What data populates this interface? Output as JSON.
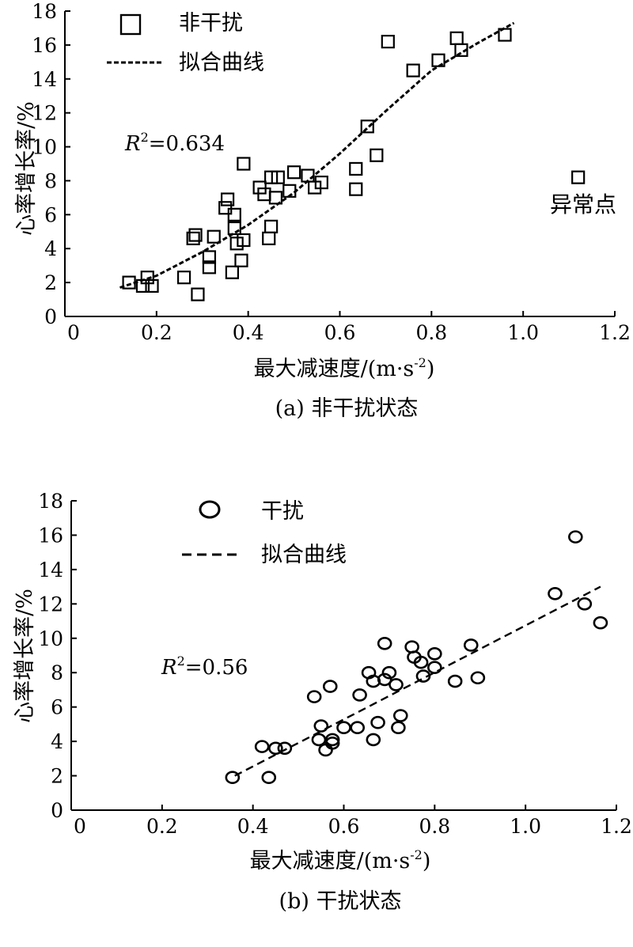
{
  "chart_data": [
    {
      "type": "scatter",
      "caption": "(a) 非干扰状态",
      "xlabel": "最大减速度/(m·s",
      "xlabel_sup": "-2",
      "xlabel_close": ")",
      "ylabel": "心率增长率/%",
      "xlim": [
        0,
        1.2
      ],
      "ylim": [
        0,
        18
      ],
      "x_ticks": [
        "0",
        "0.2",
        "0.4",
        "0.6",
        "0.8",
        "1.0",
        "1.2"
      ],
      "y_ticks": [
        "0",
        "2",
        "4",
        "6",
        "8",
        "10",
        "12",
        "14",
        "16",
        "18"
      ],
      "legend": [
        "非干扰",
        "拟合曲线"
      ],
      "legend_position": "top-left",
      "r2_label": "R",
      "r2_sup": "2",
      "r2_value": "=0.634",
      "annotation": "异常点",
      "marker": "square",
      "grid": false,
      "points": [
        [
          0.14,
          2.0
        ],
        [
          0.17,
          1.8
        ],
        [
          0.18,
          2.3
        ],
        [
          0.19,
          1.8
        ],
        [
          0.26,
          2.3
        ],
        [
          0.28,
          4.6
        ],
        [
          0.285,
          4.8
        ],
        [
          0.29,
          1.3
        ],
        [
          0.315,
          3.5
        ],
        [
          0.315,
          2.9
        ],
        [
          0.325,
          4.7
        ],
        [
          0.35,
          6.4
        ],
        [
          0.355,
          6.9
        ],
        [
          0.365,
          2.6
        ],
        [
          0.37,
          6.0
        ],
        [
          0.37,
          5.2
        ],
        [
          0.375,
          4.3
        ],
        [
          0.385,
          3.3
        ],
        [
          0.39,
          4.5
        ],
        [
          0.39,
          9.0
        ],
        [
          0.425,
          7.6
        ],
        [
          0.435,
          7.2
        ],
        [
          0.445,
          4.6
        ],
        [
          0.45,
          5.3
        ],
        [
          0.45,
          8.2
        ],
        [
          0.46,
          7.0
        ],
        [
          0.465,
          8.2
        ],
        [
          0.49,
          7.4
        ],
        [
          0.5,
          8.5
        ],
        [
          0.53,
          8.3
        ],
        [
          0.545,
          7.6
        ],
        [
          0.56,
          7.9
        ],
        [
          0.635,
          8.7
        ],
        [
          0.635,
          7.5
        ],
        [
          0.66,
          11.2
        ],
        [
          0.68,
          9.5
        ],
        [
          0.705,
          16.2
        ],
        [
          0.76,
          14.5
        ],
        [
          0.815,
          15.1
        ],
        [
          0.855,
          16.4
        ],
        [
          0.865,
          15.7
        ],
        [
          0.96,
          16.6
        ],
        [
          1.12,
          8.2
        ]
      ],
      "fit": [
        [
          0.12,
          1.7
        ],
        [
          0.2,
          2.4
        ],
        [
          0.3,
          3.8
        ],
        [
          0.4,
          5.4
        ],
        [
          0.5,
          7.3
        ],
        [
          0.6,
          9.6
        ],
        [
          0.7,
          12.1
        ],
        [
          0.8,
          14.5
        ],
        [
          0.9,
          16.1
        ],
        [
          0.98,
          17.3
        ]
      ]
    },
    {
      "type": "scatter",
      "caption": "(b) 干扰状态",
      "xlabel": "最大减速度/(m·s",
      "xlabel_sup": "-2",
      "xlabel_close": ")",
      "ylabel": "心率增长率/%",
      "xlim": [
        0,
        1.2
      ],
      "ylim": [
        0,
        18
      ],
      "x_ticks": [
        "0",
        "0.2",
        "0.4",
        "0.6",
        "0.8",
        "1.0",
        "1.2"
      ],
      "y_ticks": [
        "0",
        "2",
        "4",
        "6",
        "8",
        "10",
        "12",
        "14",
        "16",
        "18"
      ],
      "legend": [
        "干扰",
        "拟合曲线"
      ],
      "legend_position": "top-left",
      "r2_label": "R",
      "r2_sup": "2",
      "r2_value": "=0.56",
      "marker": "circle",
      "grid": false,
      "points": [
        [
          0.355,
          1.9
        ],
        [
          0.42,
          3.7
        ],
        [
          0.435,
          1.9
        ],
        [
          0.45,
          3.6
        ],
        [
          0.47,
          3.6
        ],
        [
          0.535,
          6.6
        ],
        [
          0.545,
          4.1
        ],
        [
          0.55,
          4.9
        ],
        [
          0.56,
          3.5
        ],
        [
          0.57,
          7.2
        ],
        [
          0.575,
          4.1
        ],
        [
          0.575,
          3.9
        ],
        [
          0.6,
          4.8
        ],
        [
          0.63,
          4.8
        ],
        [
          0.635,
          6.7
        ],
        [
          0.655,
          8.0
        ],
        [
          0.665,
          4.1
        ],
        [
          0.665,
          7.5
        ],
        [
          0.675,
          5.1
        ],
        [
          0.69,
          9.7
        ],
        [
          0.69,
          7.6
        ],
        [
          0.7,
          8.0
        ],
        [
          0.715,
          7.3
        ],
        [
          0.72,
          4.8
        ],
        [
          0.725,
          5.5
        ],
        [
          0.75,
          9.5
        ],
        [
          0.755,
          8.9
        ],
        [
          0.77,
          8.6
        ],
        [
          0.775,
          7.8
        ],
        [
          0.8,
          9.1
        ],
        [
          0.8,
          8.3
        ],
        [
          0.845,
          7.5
        ],
        [
          0.88,
          9.6
        ],
        [
          0.895,
          7.7
        ],
        [
          1.065,
          12.6
        ],
        [
          1.11,
          15.9
        ],
        [
          1.13,
          12.0
        ],
        [
          1.165,
          10.9
        ]
      ],
      "fit": [
        [
          0.36,
          2.0
        ],
        [
          1.165,
          13.0
        ]
      ]
    }
  ]
}
